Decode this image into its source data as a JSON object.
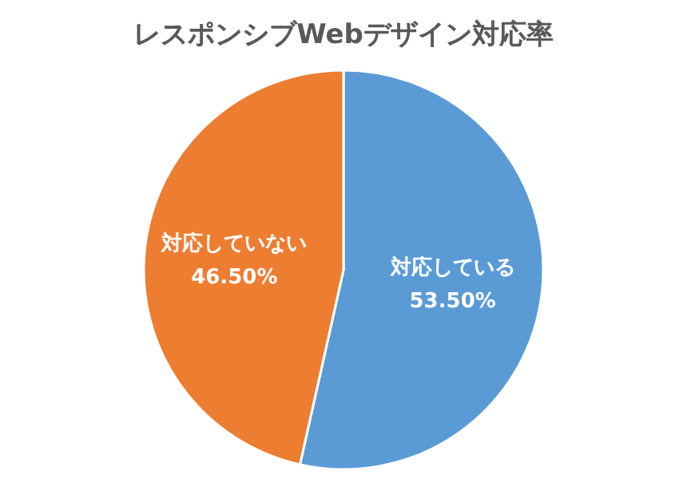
{
  "chart_data": {
    "type": "pie",
    "title": "レスポンシブWebデザイン対応率",
    "categories": [
      "対応している",
      "対応していない"
    ],
    "values": [
      53.5,
      46.5
    ],
    "colors": [
      "#5b9bd5",
      "#ed7d31"
    ],
    "value_labels": [
      "53.50%",
      "46.50%"
    ],
    "legend": false
  }
}
